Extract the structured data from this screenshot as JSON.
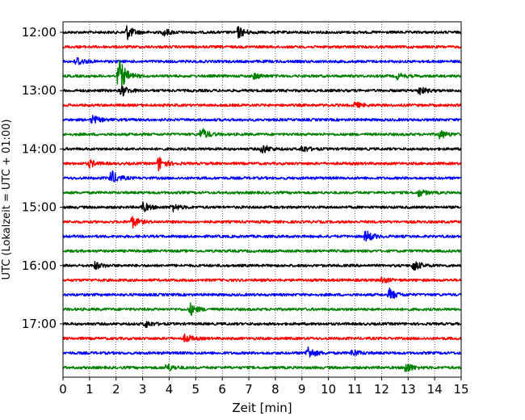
{
  "chart_data": {
    "type": "line",
    "subtype": "seismic-helicorder",
    "title": "",
    "xlabel": "Zeit  [min]",
    "ylabel": "UTC (Lokalzeit = UTC + 01:00)",
    "xlim": [
      0,
      15
    ],
    "x_ticks": [
      0,
      1,
      2,
      3,
      4,
      5,
      6,
      7,
      8,
      9,
      10,
      11,
      12,
      13,
      14,
      15
    ],
    "x_tick_labels": [
      "0",
      "1",
      "2",
      "3",
      "4",
      "5",
      "6",
      "7",
      "8",
      "9",
      "10",
      "11",
      "12",
      "13",
      "14",
      "15"
    ],
    "y_tick_labels": [
      "12:00",
      "13:00",
      "14:00",
      "15:00",
      "16:00",
      "17:00"
    ],
    "row_minutes": 15,
    "start_time": "12:00",
    "grid": {
      "vertical_dotted": true
    },
    "trace_colors": [
      "#000000",
      "#ff0000",
      "#0000ff",
      "#008000"
    ],
    "traces": [
      {
        "start": "12:00",
        "events": [
          {
            "t": 2.4,
            "amp": 1.0
          },
          {
            "t": 6.6,
            "amp": 0.8
          },
          {
            "t": 3.8,
            "amp": 0.5
          }
        ]
      },
      {
        "start": "12:15",
        "events": []
      },
      {
        "start": "12:30",
        "events": [
          {
            "t": 0.5,
            "amp": 0.7
          }
        ]
      },
      {
        "start": "12:45",
        "events": [
          {
            "t": 2.1,
            "amp": 2.6
          },
          {
            "t": 7.2,
            "amp": 0.4
          },
          {
            "t": 12.6,
            "amp": 0.4
          }
        ]
      },
      {
        "start": "13:00",
        "events": [
          {
            "t": 2.2,
            "amp": 0.8
          },
          {
            "t": 13.4,
            "amp": 0.6
          }
        ]
      },
      {
        "start": "13:15",
        "events": [
          {
            "t": 11.0,
            "amp": 0.4
          }
        ]
      },
      {
        "start": "13:30",
        "events": [
          {
            "t": 1.1,
            "amp": 0.6
          }
        ]
      },
      {
        "start": "13:45",
        "events": [
          {
            "t": 5.2,
            "amp": 0.9
          },
          {
            "t": 14.2,
            "amp": 0.6
          }
        ]
      },
      {
        "start": "14:00",
        "events": [
          {
            "t": 7.5,
            "amp": 0.7
          },
          {
            "t": 9.0,
            "amp": 0.5
          }
        ]
      },
      {
        "start": "14:15",
        "events": [
          {
            "t": 1.0,
            "amp": 0.5
          },
          {
            "t": 3.6,
            "amp": 1.0
          }
        ]
      },
      {
        "start": "14:30",
        "events": [
          {
            "t": 1.8,
            "amp": 1.1
          }
        ]
      },
      {
        "start": "14:45",
        "events": [
          {
            "t": 13.4,
            "amp": 0.5
          }
        ]
      },
      {
        "start": "15:00",
        "events": [
          {
            "t": 3.0,
            "amp": 0.7
          },
          {
            "t": 4.1,
            "amp": 0.6
          }
        ]
      },
      {
        "start": "15:15",
        "events": [
          {
            "t": 2.6,
            "amp": 0.8
          }
        ]
      },
      {
        "start": "15:30",
        "events": [
          {
            "t": 11.4,
            "amp": 0.9
          }
        ]
      },
      {
        "start": "15:45",
        "events": []
      },
      {
        "start": "16:00",
        "events": [
          {
            "t": 1.2,
            "amp": 0.5
          },
          {
            "t": 13.2,
            "amp": 0.8
          }
        ]
      },
      {
        "start": "16:15",
        "events": [
          {
            "t": 12.0,
            "amp": 0.4
          }
        ]
      },
      {
        "start": "16:30",
        "events": [
          {
            "t": 12.3,
            "amp": 0.8
          }
        ]
      },
      {
        "start": "16:45",
        "events": [
          {
            "t": 4.8,
            "amp": 0.8
          }
        ]
      },
      {
        "start": "17:00",
        "events": [
          {
            "t": 3.1,
            "amp": 0.5
          }
        ]
      },
      {
        "start": "17:15",
        "events": [
          {
            "t": 4.6,
            "amp": 0.6
          }
        ]
      },
      {
        "start": "17:30",
        "events": [
          {
            "t": 9.2,
            "amp": 1.0
          },
          {
            "t": 10.9,
            "amp": 0.5
          }
        ]
      },
      {
        "start": "17:45",
        "events": [
          {
            "t": 3.9,
            "amp": 0.6
          },
          {
            "t": 12.9,
            "amp": 0.8
          }
        ]
      }
    ]
  }
}
